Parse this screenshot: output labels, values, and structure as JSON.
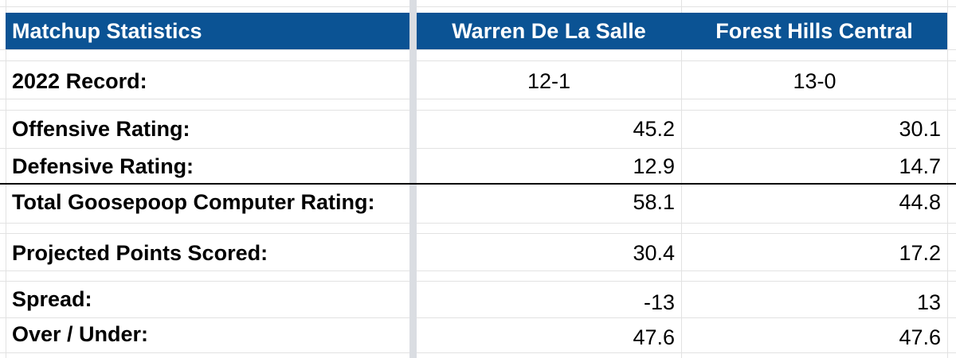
{
  "header": {
    "title": "Matchup Statistics",
    "team1": "Warren De La Salle",
    "team2": "Forest Hills Central"
  },
  "rows": {
    "record": {
      "label": "2022 Record:",
      "team1": "12-1",
      "team2": "13-0"
    },
    "offense": {
      "label": "Offensive Rating:",
      "team1": "45.2",
      "team2": "30.1"
    },
    "defense": {
      "label": "Defensive Rating:",
      "team1": "12.9",
      "team2": "14.7"
    },
    "total": {
      "label": "Total Goosepoop Computer Rating:",
      "team1": "58.1",
      "team2": "44.8"
    },
    "projected": {
      "label": "Projected Points Scored:",
      "team1": "30.4",
      "team2": "17.2"
    },
    "spread": {
      "label": "Spread:",
      "team1": "-13",
      "team2": "13"
    },
    "overunder": {
      "label": "Over / Under:",
      "team1": "47.6",
      "team2": "47.6"
    }
  },
  "colors": {
    "header_bg": "#0b5394",
    "header_text": "#ffffff",
    "grid": "#e2e2e2",
    "freeze_bar": "#dadde2"
  }
}
